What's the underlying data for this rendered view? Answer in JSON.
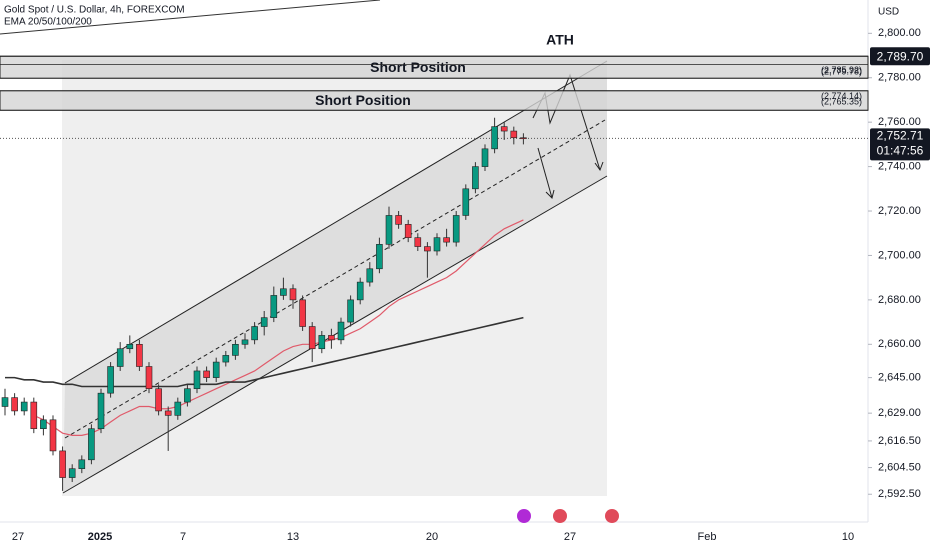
{
  "chart_data": {
    "type": "candlestick",
    "title": "Gold Spot / U.S. Dollar, 4h, FOREXCOM",
    "indicator_label": "EMA 20/50/100/200",
    "currency": "USD",
    "annotation": "ATH",
    "zones": [
      "Short Position",
      "Short Position"
    ],
    "ath_price": {
      "value": 2789.7,
      "label": "2,789.70"
    },
    "current_price": {
      "value": 2752.71,
      "label": "2,752.71"
    },
    "countdown": "01:47:56",
    "levels": [
      {
        "value": 2785.92,
        "label": "(2,785.92)"
      },
      {
        "value": 2779.78,
        "label": "(2,779.78)"
      },
      {
        "value": 2774.14,
        "label": "(2,774.14)"
      },
      {
        "value": 2765.35,
        "label": "(2,765.35)"
      }
    ],
    "xtick_labels": [
      "27",
      "2025",
      "7",
      "13",
      "20",
      "27",
      "Feb",
      "10"
    ],
    "ylim": [
      2580,
      2815
    ],
    "yticks": [
      {
        "value": 2800,
        "label": "2,800.00"
      },
      {
        "value": 2780,
        "label": "2,780.00"
      },
      {
        "value": 2760,
        "label": "2,760.00"
      },
      {
        "value": 2740,
        "label": "2,740.00"
      },
      {
        "value": 2720,
        "label": "2,720.00"
      },
      {
        "value": 2700,
        "label": "2,700.00"
      },
      {
        "value": 2680,
        "label": "2,680.00"
      },
      {
        "value": 2660,
        "label": "2,660.00"
      },
      {
        "value": 2645,
        "label": "2,645.00"
      },
      {
        "value": 2629,
        "label": "2,629.00"
      },
      {
        "value": 2616.5,
        "label": "2,616.50"
      },
      {
        "value": 2604.5,
        "label": "2,604.50"
      },
      {
        "value": 2592.5,
        "label": "2,592.50"
      }
    ],
    "up_color": "#089981",
    "down_color": "#f23645",
    "open": [
      2632,
      2636,
      2630,
      2634,
      2622,
      2626,
      2612,
      2600,
      2604,
      2608,
      2622,
      2638,
      2650,
      2658,
      2660,
      2650,
      2640,
      2630,
      2628,
      2634,
      2640,
      2648,
      2645,
      2652,
      2655,
      2660,
      2662,
      2668,
      2672,
      2682,
      2685,
      2680,
      2668,
      2658,
      2664,
      2662,
      2670,
      2680,
      2688,
      2694,
      2705,
      2718,
      2714,
      2708,
      2704,
      2702,
      2708,
      2706,
      2718,
      2730,
      2740,
      2748,
      2758,
      2756,
      2753
    ],
    "high": [
      2640,
      2638,
      2636,
      2636,
      2628,
      2628,
      2614,
      2606,
      2610,
      2624,
      2640,
      2652,
      2661,
      2664,
      2662,
      2652,
      2642,
      2632,
      2636,
      2642,
      2650,
      2650,
      2654,
      2657,
      2662,
      2665,
      2670,
      2675,
      2686,
      2690,
      2687,
      2682,
      2670,
      2666,
      2667,
      2672,
      2682,
      2690,
      2697,
      2708,
      2722,
      2720,
      2716,
      2710,
      2706,
      2710,
      2712,
      2720,
      2732,
      2742,
      2750,
      2762,
      2760,
      2758,
      2755
    ],
    "low": [
      2628,
      2628,
      2628,
      2620,
      2619,
      2610,
      2594,
      2598,
      2602,
      2606,
      2620,
      2636,
      2648,
      2656,
      2648,
      2638,
      2628,
      2612,
      2626,
      2632,
      2638,
      2643,
      2643,
      2650,
      2653,
      2658,
      2660,
      2664,
      2670,
      2680,
      2676,
      2666,
      2652,
      2656,
      2658,
      2660,
      2668,
      2678,
      2686,
      2692,
      2703,
      2712,
      2706,
      2702,
      2690,
      2700,
      2704,
      2704,
      2716,
      2728,
      2738,
      2746,
      2752,
      2750,
      2750
    ],
    "close": [
      2636,
      2630,
      2634,
      2622,
      2626,
      2612,
      2600,
      2604,
      2608,
      2622,
      2638,
      2650,
      2658,
      2660,
      2650,
      2640,
      2630,
      2628,
      2634,
      2640,
      2648,
      2645,
      2652,
      2655,
      2660,
      2662,
      2668,
      2672,
      2682,
      2685,
      2680,
      2668,
      2658,
      2664,
      2662,
      2670,
      2680,
      2688,
      2694,
      2705,
      2718,
      2714,
      2708,
      2704,
      2702,
      2708,
      2706,
      2718,
      2730,
      2740,
      2748,
      2758,
      2756,
      2753,
      2752.71
    ],
    "ema_lines": [
      {
        "color": "#e05a6a",
        "values": [
          null,
          null,
          null,
          2628,
          2626,
          2623,
          2620,
          2619,
          2619,
          2620,
          2622,
          2625,
          2628,
          2630,
          2632,
          2632,
          2631,
          2631,
          2632,
          2634,
          2636,
          2638,
          2640,
          2642,
          2644,
          2646,
          2648,
          2651,
          2654,
          2657,
          2659,
          2660,
          2660,
          2661,
          2662,
          2663,
          2665,
          2667,
          2670,
          2673,
          2677,
          2680,
          2682,
          2684,
          2686,
          2688,
          2690,
          2693,
          2697,
          2701,
          2705,
          2709,
          2712,
          2714,
          2716
        ]
      },
      {
        "color": "#333333",
        "values": [
          2645,
          2645,
          2644,
          2644,
          2643,
          2643,
          2642,
          2642,
          2641,
          2641,
          2641,
          2641,
          2641,
          2641,
          2641,
          2641,
          2641,
          2641,
          2641,
          2642,
          2642,
          2642,
          2642,
          2643,
          2643,
          2643,
          2644,
          2645,
          2646,
          2647,
          2648,
          2649,
          2650,
          2651,
          2652,
          2653,
          2654,
          2655,
          2656,
          2657,
          2658,
          2659,
          2660,
          2661,
          2662,
          2663,
          2664,
          2665,
          2666,
          2667,
          2668,
          2669,
          2670,
          2671,
          2672
        ]
      }
    ]
  }
}
